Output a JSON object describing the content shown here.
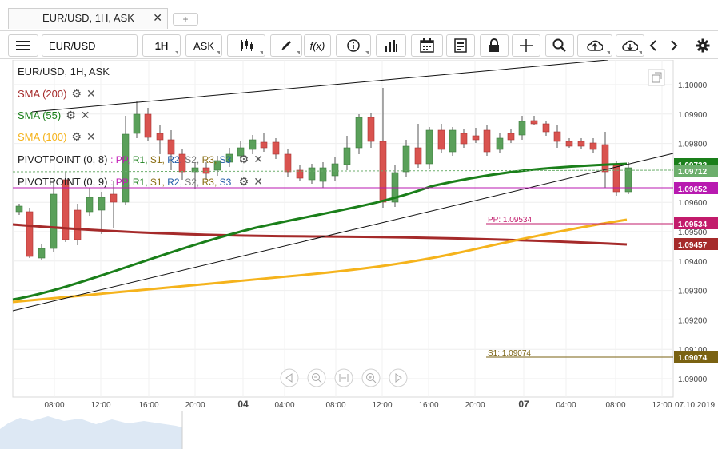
{
  "tab": {
    "title": "EUR/USD, 1H, ASK",
    "close": "✕",
    "add": "+"
  },
  "toolbar": {
    "symbol": "EUR/USD",
    "timeframe": "1H",
    "price_side": "ASK",
    "menu_icon": "hamburger-icon",
    "fx_label": "f(x)"
  },
  "chart": {
    "header": "EUR/USD, 1H, ASK",
    "indicators": [
      {
        "label": "SMA (200)",
        "color": "#a52a2a"
      },
      {
        "label": "SMA (55)",
        "color": "#1a7f1a"
      },
      {
        "label": "SMA (100)",
        "color": "#f5b31c"
      }
    ],
    "pivots": [
      {
        "label": "PIVOTPOINT (0, 8)",
        "levels": [
          ": PP,",
          "R1,",
          "S1,",
          "R2,",
          "S2,",
          "R3,",
          "S3"
        ]
      },
      {
        "label": "PIVOTPOINT (0, 9)",
        "levels": [
          ": PP,",
          "R1,",
          "S1,",
          "R2,",
          "S2,",
          "R3,",
          "S3"
        ]
      }
    ],
    "pivot_level_colors": [
      "#c21bb6",
      "#1a7f1a",
      "#8a6d12",
      "#1f5aa6",
      "#777777",
      "#8a6d12",
      "#1f5aa6"
    ],
    "pp_line_label": "PP: 1.09534",
    "s1_line_label": "S1: 1.09074",
    "y_ticks": [
      "1.10000",
      "1.09900",
      "1.09800",
      "1.09700",
      "1.09600",
      "1.09500",
      "1.09400",
      "1.09300",
      "1.09200",
      "1.09100",
      "1.09000"
    ],
    "x_ticks": [
      "08:00",
      "12:00",
      "16:00",
      "20:00",
      "04",
      "04:00",
      "08:00",
      "12:00",
      "16:00",
      "20:00",
      "07",
      "04:00",
      "08:00",
      "12:00"
    ],
    "date_label": "07.10.2019",
    "price_badges": [
      {
        "text": "1.09733",
        "color": "#1a7f1a"
      },
      {
        "text": "1.09712",
        "color": "#6cae6c"
      },
      {
        "text": "1.09652",
        "color": "#b81ab0"
      },
      {
        "text": "1.09534",
        "color": "#c21b6b"
      },
      {
        "text": "1.09457",
        "color": "#a52a2a"
      },
      {
        "text": "1.09074",
        "color": "#7a6212"
      }
    ]
  }
}
